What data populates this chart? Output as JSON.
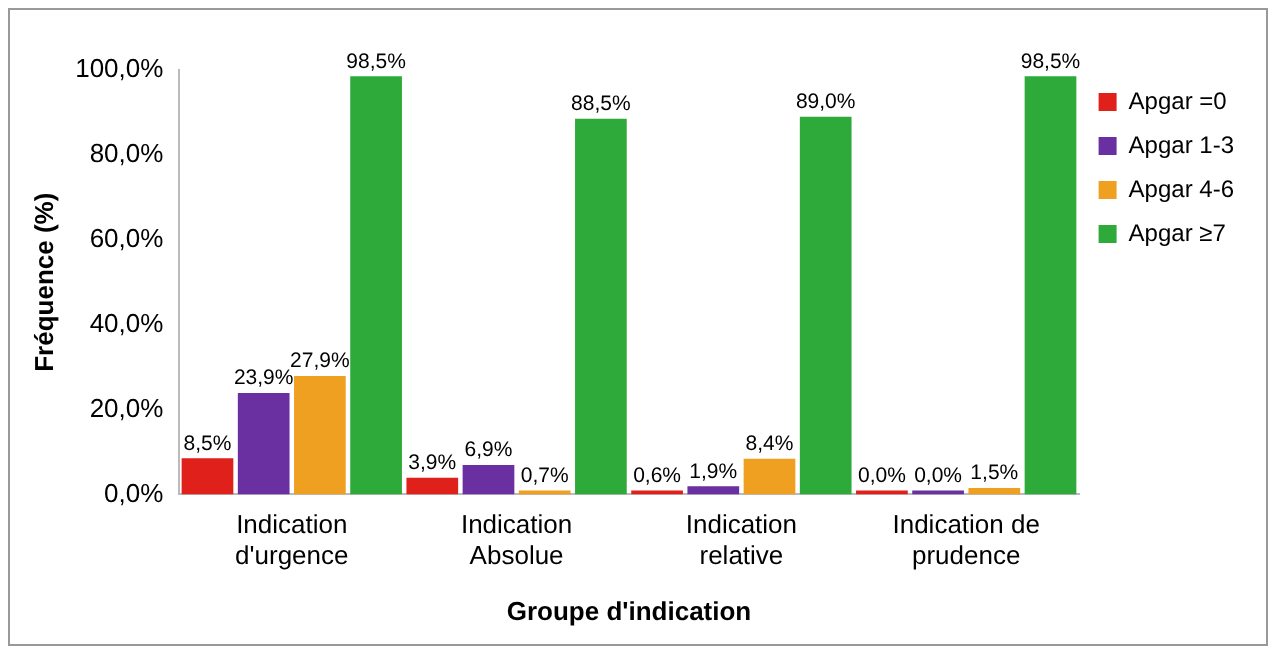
{
  "chart_data": {
    "type": "bar",
    "xlabel": "Groupe d'indication",
    "ylabel": "Fréquence (%)",
    "categories": [
      "Indication d'urgence",
      "Indication Absolue",
      "Indication relative",
      "Indication de prudence"
    ],
    "series": [
      {
        "name": "Apgar =0",
        "color": "#e0201a",
        "values": [
          8.5,
          3.9,
          0.6,
          0.0
        ],
        "value_labels": [
          "8,5%",
          "3,9%",
          "0,6%",
          "0,0%"
        ]
      },
      {
        "name": "Apgar 1-3",
        "color": "#6a2fa0",
        "values": [
          23.9,
          6.9,
          1.9,
          0.0
        ],
        "value_labels": [
          "23,9%",
          "6,9%",
          "1,9%",
          "0,0%"
        ]
      },
      {
        "name": "Apgar 4-6",
        "color": "#f0a020",
        "values": [
          27.9,
          0.7,
          8.4,
          1.5
        ],
        "value_labels": [
          "27,9%",
          "0,7%",
          "8,4%",
          "1,5%"
        ]
      },
      {
        "name": "Apgar ≥7",
        "color": "#2eaa3a",
        "values": [
          98.5,
          88.5,
          89.0,
          98.5
        ],
        "value_labels": [
          "98,5%",
          "88,5%",
          "89,0%",
          "98,5%"
        ]
      }
    ],
    "ylim": [
      0,
      100
    ],
    "yticks": [
      {
        "value": 0,
        "label": "0,0%"
      },
      {
        "value": 20,
        "label": "20,0%"
      },
      {
        "value": 40,
        "label": "40,0%"
      },
      {
        "value": 60,
        "label": "60,0%"
      },
      {
        "value": 80,
        "label": "80,0%"
      },
      {
        "value": 100,
        "label": "100,0%"
      }
    ],
    "legend": "right",
    "grid": false
  }
}
